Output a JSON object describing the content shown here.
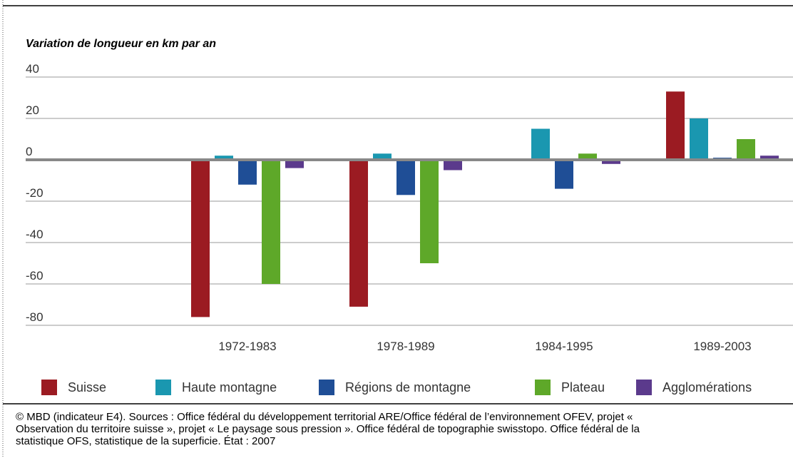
{
  "chart_data": {
    "type": "bar",
    "subtitle": "Variation de longueur en km par an",
    "categories": [
      "1972-1983",
      "1978-1989",
      "1984-1995",
      "1989-2003"
    ],
    "series": [
      {
        "name": "Suisse",
        "color": "#9b1b22",
        "values": [
          -76,
          -71,
          0,
          33
        ]
      },
      {
        "name": "Haute montagne",
        "color": "#1a97b0",
        "values": [
          2,
          3,
          15,
          20
        ]
      },
      {
        "name": "Régions de montagne",
        "color": "#1f4e96",
        "values": [
          -12,
          -17,
          -14,
          1
        ]
      },
      {
        "name": "Plateau",
        "color": "#5ea829",
        "values": [
          -60,
          -50,
          3,
          10
        ]
      },
      {
        "name": "Agglomérations",
        "color": "#5b3a8c",
        "values": [
          -4,
          -5,
          -2,
          2
        ]
      }
    ],
    "ylim": [
      -80,
      40
    ],
    "yticks": [
      -80,
      -60,
      -40,
      -20,
      0,
      20,
      40
    ],
    "grid": true,
    "legend": "bottom",
    "source": [
      "© MBD (indicateur E4). Sources : Office fédéral du développement territorial ARE/Office fédéral de l’environnement OFEV, projet «",
      "Observation du territoire suisse », projet « Le paysage sous pression ». Office fédéral de topographie swisstopo. Office fédéral de la",
      "statistique OFS, statistique de la superficie. État : 2007"
    ]
  }
}
